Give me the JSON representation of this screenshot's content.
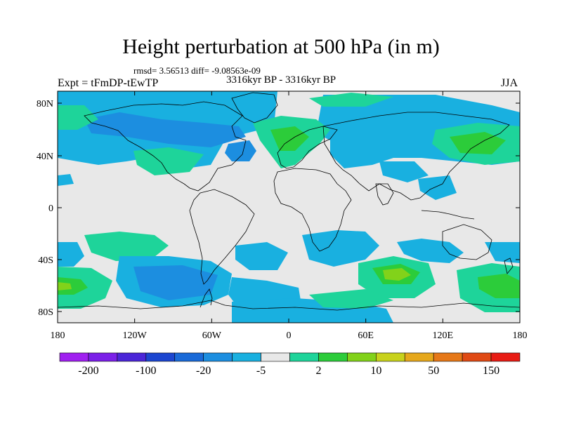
{
  "title": "Height perturbation at 500 hPa (in m)",
  "stats": "rmsd= 3.56513 diff= -9.08563e-09",
  "left_label": "Expt = tFmDP-tEwTP",
  "center_label": "3316kyr BP - 3316kyr BP",
  "right_label": "JJA",
  "map": {
    "lon_ticks": [
      "180",
      "120W",
      "60W",
      "0",
      "60E",
      "120E",
      "180"
    ],
    "lat_ticks": [
      "80N",
      "40N",
      "0",
      "40S",
      "80S"
    ]
  },
  "colorbar": {
    "colors": [
      "#a020f0",
      "#7b20e8",
      "#4b26d8",
      "#1c46d0",
      "#1a6ad8",
      "#1c8ee0",
      "#19b0e0",
      "#e8e8e8",
      "#1ed49a",
      "#2ccc3a",
      "#82d21a",
      "#c8d21c",
      "#e6a81c",
      "#e67818",
      "#e04a14",
      "#e81c14"
    ],
    "labels": [
      "-200",
      "-100",
      "-20",
      "-5",
      "2",
      "10",
      "50",
      "150"
    ]
  }
}
